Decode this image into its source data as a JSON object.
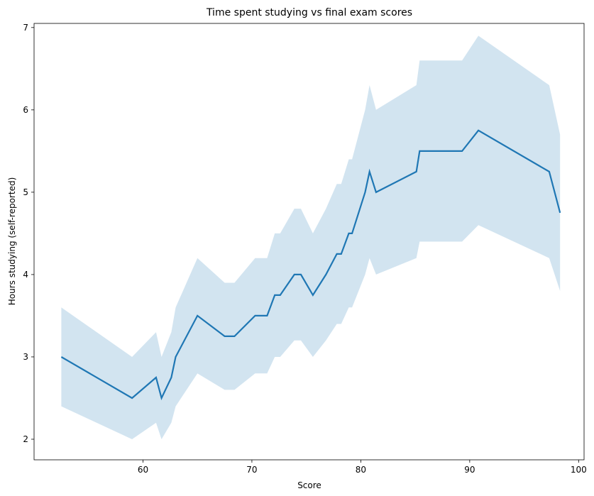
{
  "chart_data": {
    "type": "line",
    "title": "Time spent studying vs final exam scores",
    "xlabel": "Score",
    "ylabel": "Hours studying (self-reported)",
    "xlim": [
      50,
      100.5
    ],
    "ylim": [
      1.75,
      7.05
    ],
    "xticks": [
      60,
      70,
      80,
      90,
      100
    ],
    "yticks": [
      2,
      3,
      4,
      5,
      6,
      7
    ],
    "grid": false,
    "legend": "none",
    "colors": {
      "line": "#1f77b4",
      "band": "#1f77b4",
      "axis": "#000000"
    },
    "series": [
      {
        "x": [
          52.5,
          59.0,
          61.2,
          61.7,
          62.6,
          63.0,
          65.0,
          67.5,
          68.4,
          70.3,
          71.4,
          72.1,
          72.6,
          73.9,
          74.5,
          75.6,
          76.8,
          77.8,
          78.2,
          78.9,
          79.2,
          80.4,
          80.8,
          81.4,
          85.1,
          85.4,
          89.3,
          90.8,
          97.3,
          98.3
        ],
        "y": [
          3.0,
          2.5,
          2.75,
          2.5,
          2.75,
          3.0,
          3.5,
          3.25,
          3.25,
          3.5,
          3.5,
          3.75,
          3.75,
          4.0,
          4.0,
          3.75,
          4.0,
          4.25,
          4.25,
          4.5,
          4.5,
          5.0,
          5.25,
          5.0,
          5.25,
          5.5,
          5.5,
          5.75,
          5.25,
          4.75
        ],
        "upper": [
          3.6,
          3.0,
          3.3,
          3.0,
          3.3,
          3.6,
          4.2,
          3.9,
          3.9,
          4.2,
          4.2,
          4.5,
          4.5,
          4.8,
          4.8,
          4.5,
          4.8,
          5.1,
          5.1,
          5.4,
          5.4,
          6.0,
          6.3,
          6.0,
          6.3,
          6.6,
          6.6,
          6.9,
          6.3,
          5.7
        ],
        "lower": [
          2.4,
          2.0,
          2.2,
          2.0,
          2.2,
          2.4,
          2.8,
          2.6,
          2.6,
          2.8,
          2.8,
          3.0,
          3.0,
          3.2,
          3.2,
          3.0,
          3.2,
          3.4,
          3.4,
          3.6,
          3.6,
          4.0,
          4.2,
          4.0,
          4.2,
          4.4,
          4.4,
          4.6,
          4.2,
          3.8
        ]
      }
    ]
  }
}
